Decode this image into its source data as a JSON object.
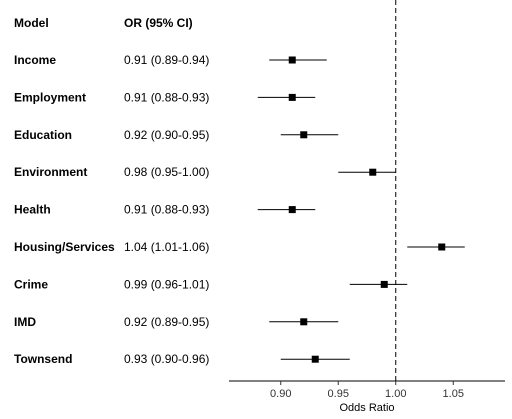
{
  "header": {
    "model": "Model",
    "or": "OR (95% CI)"
  },
  "chart_data": {
    "type": "forest",
    "xlabel": "Odds Ratio",
    "xlim": [
      0.855,
      1.095
    ],
    "xticks": [
      0.9,
      0.95,
      1.0,
      1.05
    ],
    "xtick_labels": [
      "0.90",
      "0.95",
      "1.00",
      "1.05"
    ],
    "reference_line": 1.0,
    "rows": [
      {
        "model": "Income",
        "label": "0.91 (0.89-0.94)",
        "or": 0.91,
        "lo": 0.89,
        "hi": 0.94
      },
      {
        "model": "Employment",
        "label": "0.91 (0.88-0.93)",
        "or": 0.91,
        "lo": 0.88,
        "hi": 0.93
      },
      {
        "model": "Education",
        "label": "0.92 (0.90-0.95)",
        "or": 0.92,
        "lo": 0.9,
        "hi": 0.95
      },
      {
        "model": "Environment",
        "label": "0.98 (0.95-1.00)",
        "or": 0.98,
        "lo": 0.95,
        "hi": 1.0
      },
      {
        "model": "Health",
        "label": "0.91 (0.88-0.93)",
        "or": 0.91,
        "lo": 0.88,
        "hi": 0.93
      },
      {
        "model": "Housing/Services",
        "label": "1.04 (1.01-1.06)",
        "or": 1.04,
        "lo": 1.01,
        "hi": 1.06
      },
      {
        "model": "Crime",
        "label": "0.99 (0.96-1.01)",
        "or": 0.99,
        "lo": 0.96,
        "hi": 1.01
      },
      {
        "model": "IMD",
        "label": "0.92 (0.89-0.95)",
        "or": 0.92,
        "lo": 0.89,
        "hi": 0.95
      },
      {
        "model": "Townsend",
        "label": "0.93 (0.90-0.96)",
        "or": 0.93,
        "lo": 0.9,
        "hi": 0.96
      }
    ]
  }
}
